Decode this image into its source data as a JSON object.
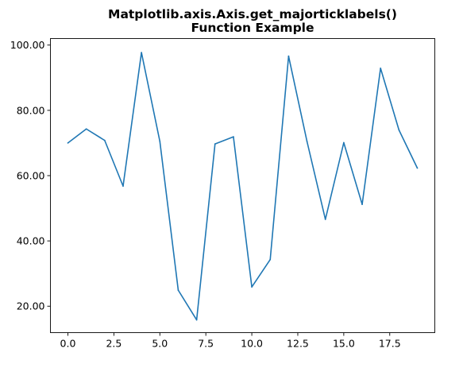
{
  "chart_data": {
    "type": "line",
    "title_line1": "Matplotlib.axis.Axis.get_majorticklabels()",
    "title_line2": "Function Example",
    "xlabel": "",
    "ylabel": "",
    "xlim": [
      -0.95,
      19.95
    ],
    "ylim": [
      11.9,
      102.0
    ],
    "xticks": [
      0.0,
      2.5,
      5.0,
      7.5,
      10.0,
      12.5,
      15.0,
      17.5
    ],
    "xtick_labels": [
      "0.0",
      "2.5",
      "5.0",
      "7.5",
      "10.0",
      "12.5",
      "15.0",
      "17.5"
    ],
    "yticks": [
      20,
      40,
      60,
      80,
      100
    ],
    "ytick_labels": [
      "20.00",
      "40.00",
      "60.00",
      "80.00",
      "100.00"
    ],
    "grid": false,
    "line_color": "#1f77b4",
    "series": [
      {
        "x": [
          0,
          1,
          2,
          3,
          4,
          5,
          6,
          7,
          8,
          9,
          10,
          11,
          12,
          13,
          14,
          15,
          16,
          17,
          18,
          19
        ],
        "values": [
          70.0,
          74.3,
          70.8,
          56.8,
          97.7,
          70.5,
          24.9,
          15.8,
          69.7,
          71.9,
          25.9,
          34.3,
          96.6,
          70.5,
          46.6,
          70.1,
          51.2,
          92.9,
          74.0,
          62.3
        ]
      }
    ]
  }
}
